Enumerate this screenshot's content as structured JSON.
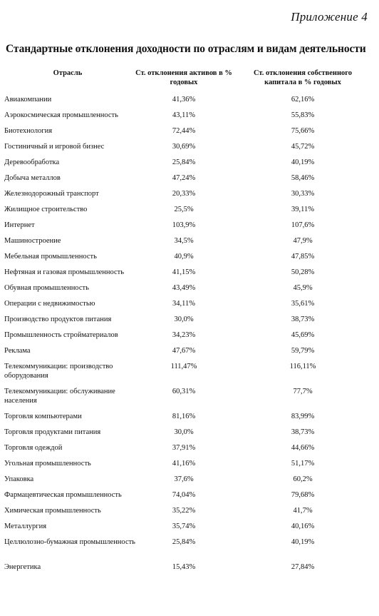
{
  "appendix_label": "Приложение 4",
  "title": "Стандартные отклонения доходности по отраслям и видам деятельности",
  "columns": {
    "industry": "Отрасль",
    "assets": "Ст. отклонения активов в % годовых",
    "equity": "Ст. отклонения собственного капитала в % годовых"
  },
  "rows": [
    {
      "name": "Авиакомпании",
      "assets": "41,36%",
      "equity": "62,16%"
    },
    {
      "name": "Аэрокосмическая промышленность",
      "assets": "43,11%",
      "equity": "55,83%"
    },
    {
      "name": "Биотехнология",
      "assets": "72,44%",
      "equity": "75,66%"
    },
    {
      "name": "Гостиничный и игровой бизнес",
      "assets": "30,69%",
      "equity": "45,72%"
    },
    {
      "name": "Деревообработка",
      "assets": "25,84%",
      "equity": "40,19%"
    },
    {
      "name": "Добыча металлов",
      "assets": "47,24%",
      "equity": "58,46%"
    },
    {
      "name": "Железнодорожный транспорт",
      "assets": "20,33%",
      "equity": "30,33%"
    },
    {
      "name": "Жилищное строительство",
      "assets": "25,5%",
      "equity": "39,11%"
    },
    {
      "name": "Интернет",
      "assets": "103,9%",
      "equity": "107,6%"
    },
    {
      "name": "Машиностроение",
      "assets": "34,5%",
      "equity": "47,9%"
    },
    {
      "name": "Мебельная промышленность",
      "assets": "40,9%",
      "equity": "47,85%"
    },
    {
      "name": "Нефтяная и газовая промышленность",
      "assets": "41,15%",
      "equity": "50,28%"
    },
    {
      "name": "Обувная промышленность",
      "assets": "43,49%",
      "equity": "45,9%"
    },
    {
      "name": "Операции с недвижимостью",
      "assets": "34,11%",
      "equity": "35,61%"
    },
    {
      "name": "Производство продуктов питания",
      "assets": "30,0%",
      "equity": "38,73%"
    },
    {
      "name": "Промышленность стройматериалов",
      "assets": "34,23%",
      "equity": "45,69%"
    },
    {
      "name": "Реклама",
      "assets": "47,67%",
      "equity": "59,79%"
    },
    {
      "name": "Телекоммуникации: производство оборудования",
      "assets": "111,47%",
      "equity": "116,11%"
    },
    {
      "name": "Телекоммуникации: обслуживание населения",
      "assets": "60,31%",
      "equity": "77,7%"
    },
    {
      "name": "Торговля компьютерами",
      "assets": "81,16%",
      "equity": "83,99%"
    },
    {
      "name": "Торговля продуктами питания",
      "assets": "30,0%",
      "equity": "38,73%"
    },
    {
      "name": "Торговля одеждой",
      "assets": "37,91%",
      "equity": "44,66%"
    },
    {
      "name": "Угольная промышленность",
      "assets": "41,16%",
      "equity": "51,17%"
    },
    {
      "name": "Упаковка",
      "assets": "37,6%",
      "equity": "60,2%"
    },
    {
      "name": "Фармацевтическая промышленность",
      "assets": "74,04%",
      "equity": "79,68%"
    },
    {
      "name": "Химическая промышленность",
      "assets": "35,22%",
      "equity": "41,7%"
    },
    {
      "name": "Металлургия",
      "assets": "35,74%",
      "equity": "40,16%"
    },
    {
      "name": "Целлюлозно-бумажная промышленность",
      "assets": "25,84%",
      "equity": "40,19%"
    },
    {
      "name": "Энергетика",
      "assets": "15,43%",
      "equity": "27,84%"
    }
  ]
}
